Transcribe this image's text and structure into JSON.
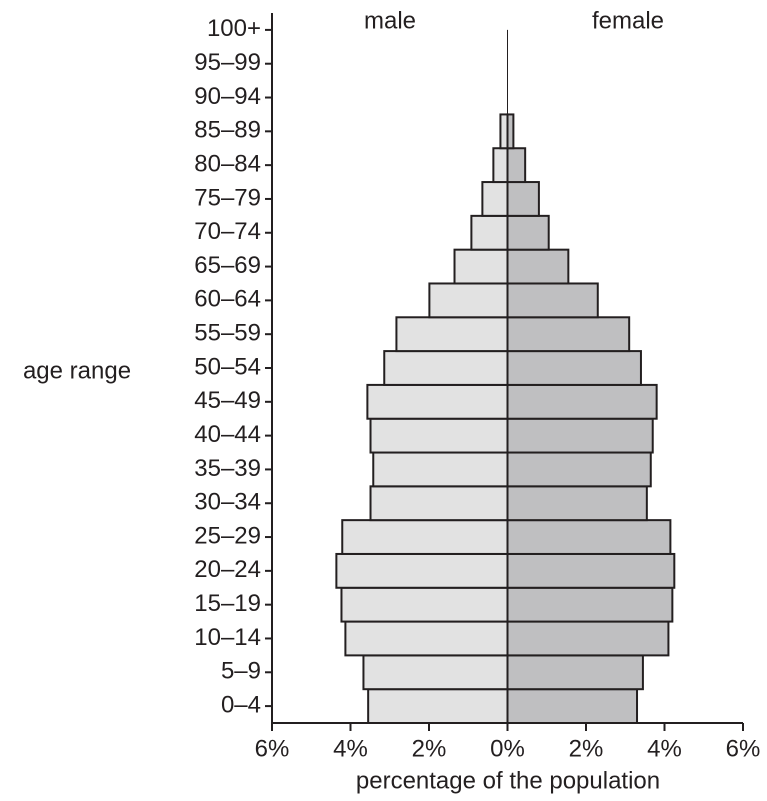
{
  "chart_data": {
    "type": "pyramid",
    "y_label": "age range",
    "x_label": "percentage of the population",
    "categories": [
      "0–4",
      "5–9",
      "10–14",
      "15–19",
      "20–24",
      "25–29",
      "30–34",
      "35–39",
      "40–44",
      "45–49",
      "50–54",
      "55–59",
      "60–64",
      "65–69",
      "70–74",
      "75–79",
      "80–84",
      "85–89",
      "90–94",
      "95–99",
      "100+"
    ],
    "series": [
      {
        "name": "male",
        "color": "#e2e2e2",
        "values": [
          -3.55,
          -3.67,
          -4.13,
          -4.23,
          -4.36,
          -4.21,
          -3.49,
          -3.42,
          -3.49,
          -3.57,
          -3.14,
          -2.83,
          -1.99,
          -1.35,
          -0.92,
          -0.64,
          -0.36,
          -0.18,
          0,
          0,
          0
        ]
      },
      {
        "name": "female",
        "color": "#bfbfc1",
        "values": [
          3.3,
          3.45,
          4.1,
          4.2,
          4.25,
          4.15,
          3.55,
          3.65,
          3.7,
          3.8,
          3.4,
          3.1,
          2.3,
          1.55,
          1.05,
          0.8,
          0.45,
          0.15,
          0,
          0,
          0
        ]
      }
    ],
    "xlim": [
      -6,
      6
    ],
    "xticks": [
      {
        "value": -6,
        "label": "6%"
      },
      {
        "value": -4,
        "label": "4%"
      },
      {
        "value": -2,
        "label": "2%"
      },
      {
        "value": 0,
        "label": "0%"
      },
      {
        "value": 2,
        "label": "2%"
      },
      {
        "value": 4,
        "label": "4%"
      },
      {
        "value": 6,
        "label": "6%"
      }
    ]
  }
}
